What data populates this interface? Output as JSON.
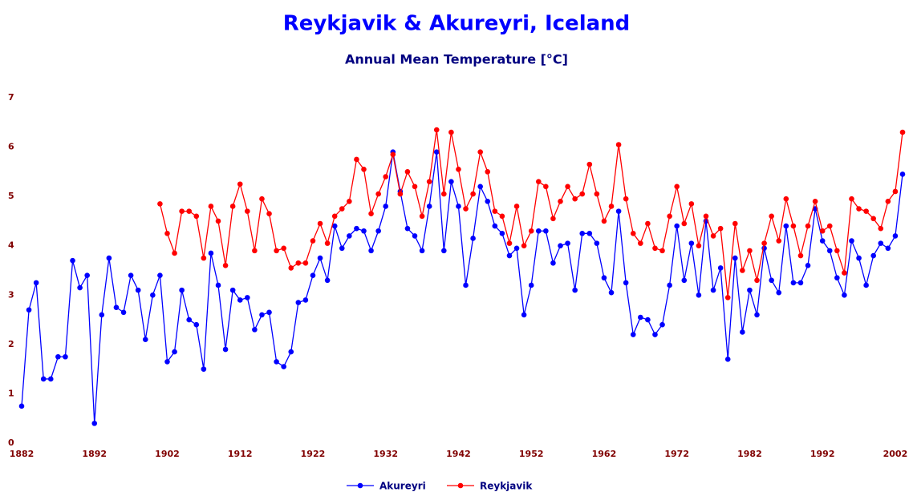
{
  "chart_data": {
    "type": "line",
    "title": "Reykjavik & Akureyri, Iceland",
    "subtitle": "Annual Mean Temperature [°C]",
    "x": [
      1882,
      1883,
      1884,
      1885,
      1886,
      1887,
      1888,
      1889,
      1890,
      1891,
      1892,
      1893,
      1894,
      1895,
      1896,
      1897,
      1898,
      1899,
      1900,
      1901,
      1902,
      1903,
      1904,
      1905,
      1906,
      1907,
      1908,
      1909,
      1910,
      1911,
      1912,
      1913,
      1914,
      1915,
      1916,
      1917,
      1918,
      1919,
      1920,
      1921,
      1922,
      1923,
      1924,
      1925,
      1926,
      1927,
      1928,
      1929,
      1930,
      1931,
      1932,
      1933,
      1934,
      1935,
      1936,
      1937,
      1938,
      1939,
      1940,
      1941,
      1942,
      1943,
      1944,
      1945,
      1946,
      1947,
      1948,
      1949,
      1950,
      1951,
      1952,
      1953,
      1954,
      1955,
      1956,
      1957,
      1958,
      1959,
      1960,
      1961,
      1962,
      1963,
      1964,
      1965,
      1966,
      1967,
      1968,
      1969,
      1970,
      1971,
      1972,
      1973,
      1974,
      1975,
      1976,
      1977,
      1978,
      1979,
      1980,
      1981,
      1982,
      1983,
      1984,
      1985,
      1986,
      1987,
      1988,
      1989,
      1990,
      1991,
      1992,
      1993,
      1994,
      1995,
      1996,
      1997,
      1998,
      1999,
      2000,
      2001,
      2002,
      2003
    ],
    "series": [
      {
        "name": "Akureyri",
        "color": "#0000ff",
        "values": [
          0.75,
          2.7,
          3.25,
          1.3,
          1.3,
          1.75,
          1.75,
          3.7,
          3.15,
          3.4,
          0.4,
          2.6,
          3.75,
          2.75,
          2.65,
          3.4,
          3.1,
          2.1,
          3.0,
          3.4,
          1.65,
          1.85,
          3.1,
          2.5,
          2.4,
          1.5,
          3.85,
          3.2,
          1.9,
          3.1,
          2.9,
          2.95,
          2.3,
          2.6,
          2.65,
          1.65,
          1.55,
          1.85,
          2.85,
          2.9,
          3.4,
          3.75,
          3.3,
          4.4,
          3.95,
          4.2,
          4.35,
          4.3,
          3.9,
          4.3,
          4.8,
          5.9,
          5.1,
          4.35,
          4.2,
          3.9,
          4.8,
          5.9,
          3.9,
          5.3,
          4.8,
          3.2,
          4.15,
          5.2,
          4.9,
          4.4,
          4.25,
          3.8,
          3.95,
          2.6,
          3.2,
          4.3,
          4.3,
          3.65,
          4.0,
          4.05,
          3.1,
          4.25,
          4.25,
          4.05,
          3.35,
          3.05,
          4.7,
          3.25,
          2.2,
          2.55,
          2.5,
          2.2,
          2.4,
          3.2,
          4.4,
          3.3,
          4.05,
          3.0,
          4.5,
          3.1,
          3.55,
          1.7,
          3.75,
          2.25,
          3.1,
          2.6,
          3.95,
          3.3,
          3.05,
          4.4,
          3.25,
          3.25,
          3.6,
          4.75,
          4.1,
          3.9,
          3.35,
          3.0,
          4.1,
          3.75,
          3.2,
          3.8,
          4.05,
          3.95,
          4.2,
          5.45
        ]
      },
      {
        "name": "Reykjavik",
        "color": "#ff0000",
        "values": [
          null,
          null,
          null,
          null,
          null,
          null,
          null,
          null,
          null,
          null,
          null,
          null,
          null,
          null,
          null,
          null,
          null,
          null,
          null,
          4.85,
          4.25,
          3.85,
          4.7,
          4.7,
          4.6,
          3.75,
          4.8,
          4.5,
          3.6,
          4.8,
          5.25,
          4.7,
          3.9,
          4.95,
          4.65,
          3.9,
          3.95,
          3.55,
          3.65,
          3.65,
          4.1,
          4.45,
          4.05,
          4.6,
          4.75,
          4.9,
          5.75,
          5.55,
          4.65,
          5.05,
          5.4,
          5.85,
          5.05,
          5.5,
          5.2,
          4.6,
          5.3,
          6.35,
          5.05,
          6.3,
          5.55,
          4.75,
          5.05,
          5.9,
          5.5,
          4.7,
          4.6,
          4.05,
          4.8,
          4.0,
          4.3,
          5.3,
          5.2,
          4.55,
          4.9,
          5.2,
          4.95,
          5.05,
          5.65,
          5.05,
          4.5,
          4.8,
          6.05,
          4.95,
          4.25,
          4.05,
          4.45,
          3.95,
          3.9,
          4.6,
          5.2,
          4.45,
          4.85,
          4.0,
          4.6,
          4.2,
          4.35,
          2.95,
          4.45,
          3.5,
          3.9,
          3.3,
          4.05,
          4.6,
          4.1,
          4.95,
          4.4,
          3.8,
          4.4,
          4.9,
          4.3,
          4.4,
          3.9,
          3.45,
          4.95,
          4.75,
          4.7,
          4.55,
          4.35,
          4.9,
          5.1,
          6.3
        ]
      }
    ],
    "xlim": [
      1882,
      2003
    ],
    "xticks": [
      1882,
      1892,
      1902,
      1912,
      1922,
      1932,
      1942,
      1952,
      1962,
      1972,
      1982,
      1992,
      2002
    ],
    "ylim": [
      0,
      7
    ],
    "yticks": [
      0,
      1,
      2,
      3,
      4,
      5,
      6,
      7
    ],
    "legend": "bottom"
  }
}
